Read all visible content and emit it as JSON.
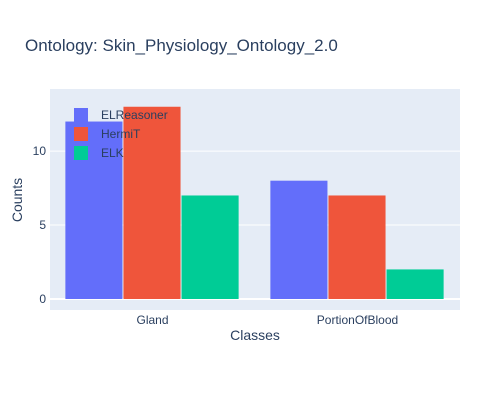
{
  "chart_data": {
    "type": "bar",
    "title": "Ontology: Skin_Physiology_Ontology_2.0",
    "xlabel": "Classes",
    "ylabel": "Counts",
    "categories": [
      "Gland",
      "PortionOfBlood"
    ],
    "series": [
      {
        "name": "ELReasoner",
        "values": [
          12,
          8
        ],
        "color": "#636efa"
      },
      {
        "name": "HermiT",
        "values": [
          13,
          7
        ],
        "color": "#ef553b"
      },
      {
        "name": "ELK",
        "values": [
          7,
          2
        ],
        "color": "#00cc96"
      }
    ],
    "ylim": [
      0,
      14.2
    ],
    "yticks": [
      0,
      5,
      10
    ],
    "grid": true,
    "legend_position": "top-left",
    "plot_background": "#e5ecf6"
  }
}
